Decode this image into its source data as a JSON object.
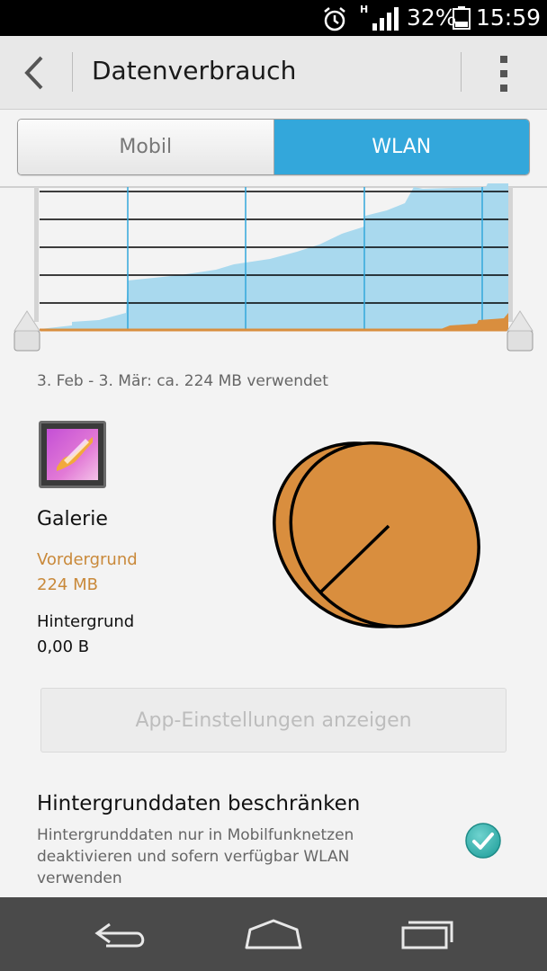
{
  "status_bar": {
    "network_type": "H",
    "battery_percent": "32%",
    "time": "15:59",
    "icons": [
      "alarm-icon",
      "signal-icon",
      "battery-icon"
    ]
  },
  "action_bar": {
    "title": "Datenverbrauch",
    "icons": [
      "back-arrow-icon",
      "overflow-menu-icon"
    ]
  },
  "tabs": {
    "items": [
      {
        "label": "Mobil",
        "selected": false
      },
      {
        "label": "WLAN",
        "selected": true
      }
    ]
  },
  "usage_chart": {
    "cycle_text": "3. Feb - 3. Mär: ca. 224 MB verwendet",
    "colors": {
      "wlan": "#a9d9ee",
      "app": "#d98e3e",
      "selected": "#33a7db"
    }
  },
  "app": {
    "name": "Galerie",
    "icon": "gallery-icon",
    "foreground_label": "Vordergrund",
    "foreground_value": "224 MB",
    "background_label": "Hintergrund",
    "background_value": "0,00 B",
    "pie_color": "#d98e3e",
    "foreground_share": 1.0
  },
  "app_settings_button": {
    "label": "App-Einstellungen anzeigen",
    "enabled": false
  },
  "restrict_background": {
    "title": "Hintergrunddaten beschränken",
    "description": "Hintergrunddaten nur in Mobilfunknetzen deaktivieren und sofern verfügbar WLAN verwenden",
    "checked": true
  },
  "nav_bar": {
    "icons": [
      "nav-back-icon",
      "nav-home-icon",
      "nav-recent-apps-icon"
    ]
  }
}
